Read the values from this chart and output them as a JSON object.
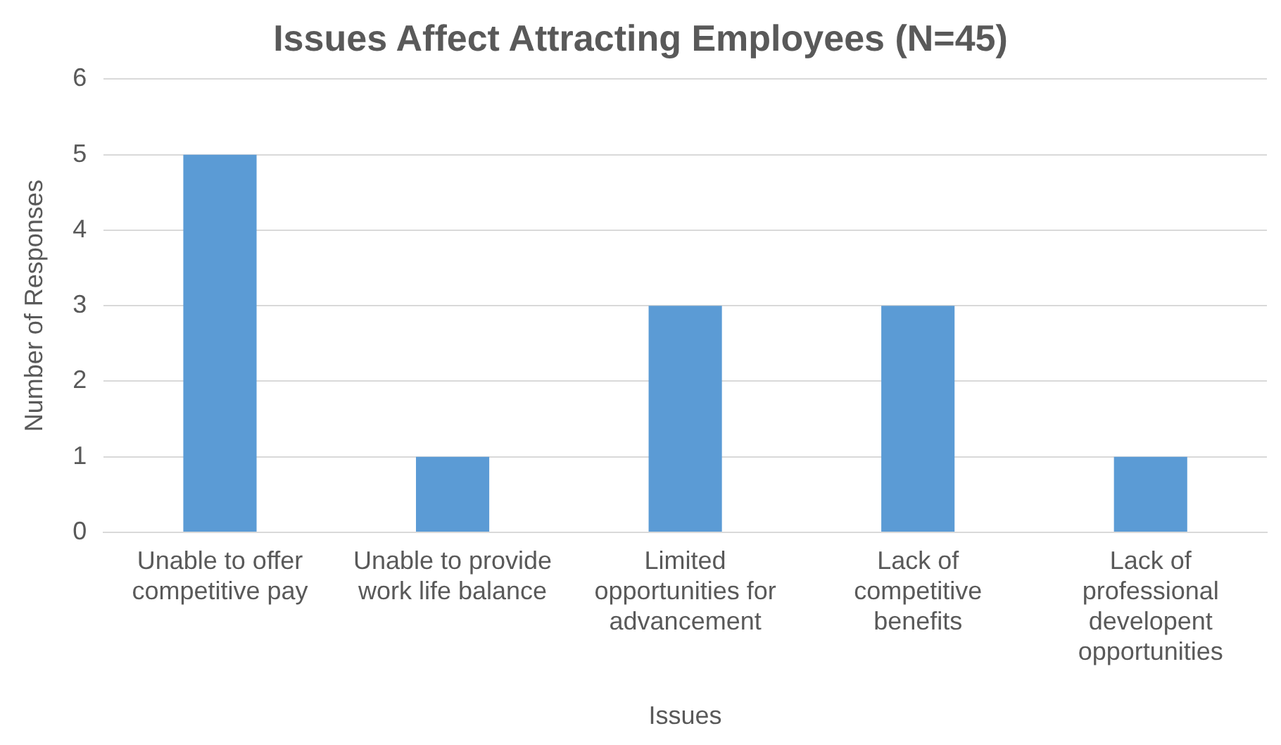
{
  "chart_data": {
    "type": "bar",
    "title": "Issues Affect Attracting Employees (N=45)",
    "xlabel": "Issues",
    "ylabel": "Number of Responses",
    "categories": [
      "Unable to offer competitive pay",
      "Unable to provide work life balance",
      "Limited opportunities for advancement",
      "Lack of competitive benefits",
      "Lack of professional developent opportunities"
    ],
    "values": [
      5,
      1,
      3,
      3,
      1
    ],
    "color": "#5b9bd5",
    "ylim": [
      0,
      6
    ],
    "yticks": [
      0,
      1,
      2,
      3,
      4,
      5,
      6
    ],
    "grid": "y",
    "legend": false
  }
}
